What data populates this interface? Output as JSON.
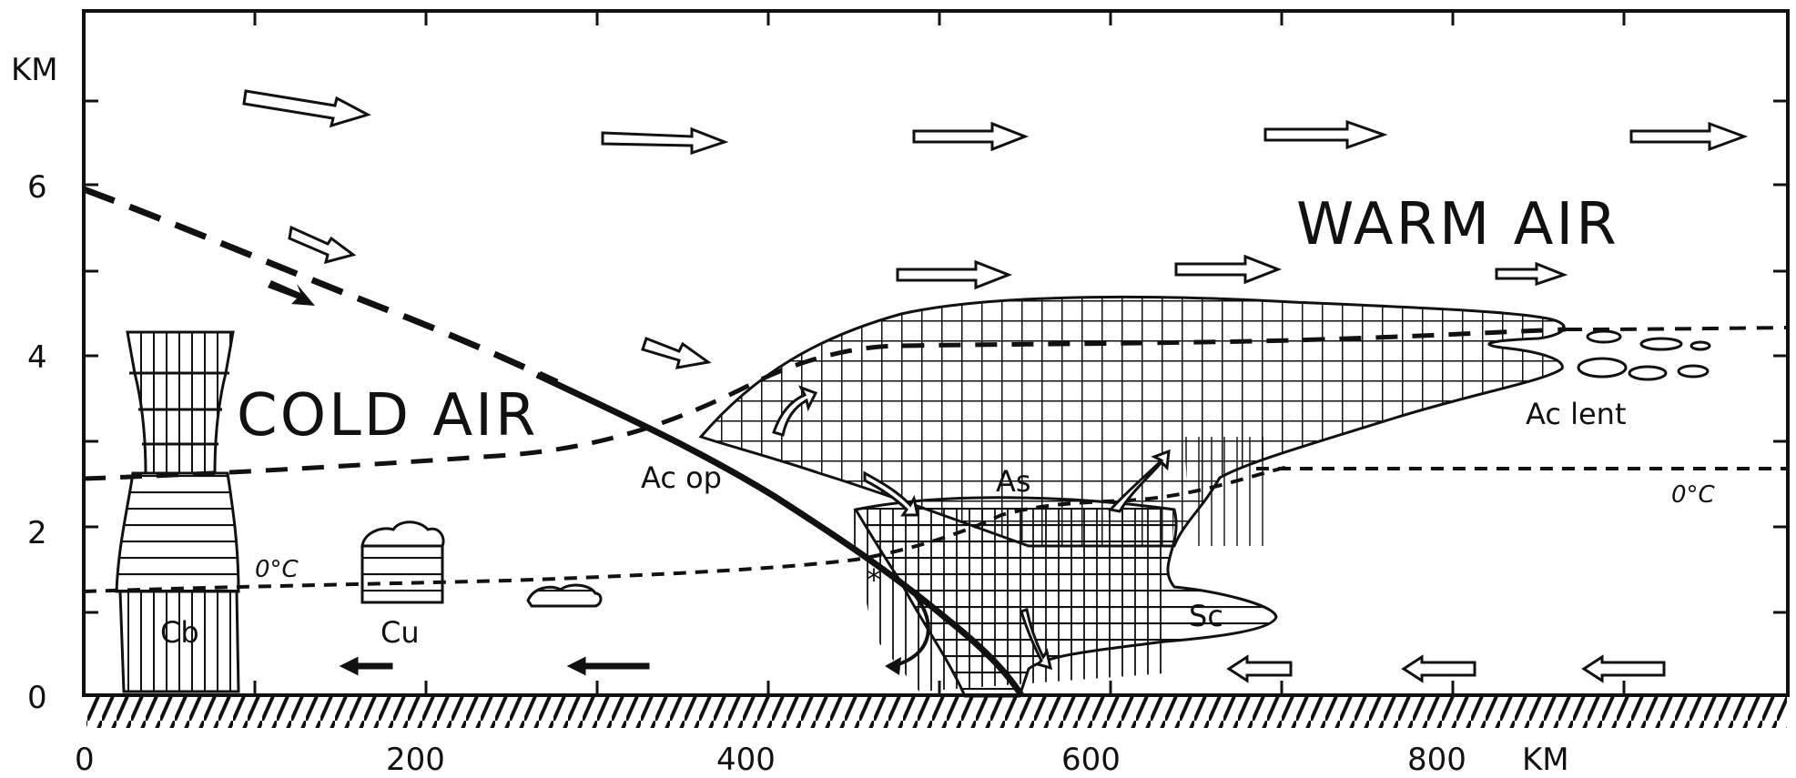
{
  "axes": {
    "y_unit": "KM",
    "y_ticks": [
      "0",
      "2",
      "4",
      "6"
    ],
    "x_ticks": [
      "0",
      "200",
      "400",
      "600",
      "800"
    ],
    "x_unit": "KM"
  },
  "regions": {
    "cold": "COLD AIR",
    "warm": "WARM AIR"
  },
  "clouds": {
    "cb": "Cb",
    "cu": "Cu",
    "ac_op": "Ac op",
    "as": "As",
    "sc": "Sc",
    "ac_lent": "Ac lent"
  },
  "freezing_level": {
    "left": "0°C",
    "right": "0°C"
  },
  "colors": {
    "ink": "#111111",
    "background": "#ffffff"
  }
}
